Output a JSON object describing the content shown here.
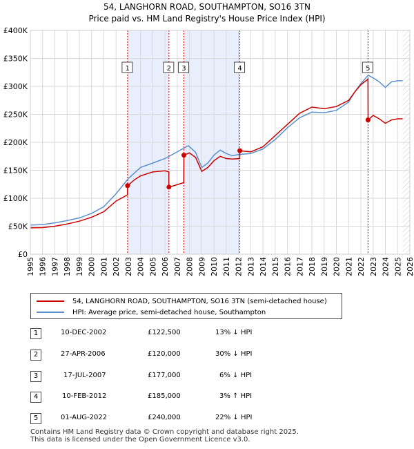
{
  "title_line1": "54, LANGHORN ROAD, SOUTHAMPTON, SO16 3TN",
  "title_line2": "Price paid vs. HM Land Registry's House Price Index (HPI)",
  "colors": {
    "property": "#cc0000",
    "hpi": "#5b8fd0",
    "shade": "#e8eefb",
    "grid": "#d9d9d9"
  },
  "chart_data": {
    "type": "line",
    "title": "54, LANGHORN ROAD, SOUTHAMPTON, SO16 3TN — Price paid vs. HM Land Registry's House Price Index (HPI)",
    "xlabel": "",
    "ylabel": "",
    "xlim": [
      1995,
      2026
    ],
    "ylim": [
      0,
      400000
    ],
    "x_ticks": [
      "1995",
      "1996",
      "1997",
      "1998",
      "1999",
      "2000",
      "2001",
      "2002",
      "2003",
      "2004",
      "2005",
      "2006",
      "2007",
      "2008",
      "2009",
      "2010",
      "2011",
      "2012",
      "2013",
      "2014",
      "2015",
      "2016",
      "2017",
      "2018",
      "2019",
      "2020",
      "2021",
      "2022",
      "2023",
      "2024",
      "2025",
      "2026"
    ],
    "y_ticks": [
      {
        "value": 0,
        "label": "£0"
      },
      {
        "value": 50000,
        "label": "£50K"
      },
      {
        "value": 100000,
        "label": "£100K"
      },
      {
        "value": 150000,
        "label": "£150K"
      },
      {
        "value": 200000,
        "label": "£200K"
      },
      {
        "value": 250000,
        "label": "£250K"
      },
      {
        "value": 300000,
        "label": "£300K"
      },
      {
        "value": 350000,
        "label": "£350K"
      },
      {
        "value": 400000,
        "label": "£400K"
      }
    ],
    "shaded_spans": [
      [
        2002.94,
        2006.32
      ],
      [
        2007.54,
        2012.11
      ]
    ],
    "series": [
      {
        "name": "54, LANGHORN ROAD, SOUTHAMPTON, SO16 3TN (semi-detached house)",
        "color": "#cc0000",
        "points": [
          [
            1995,
            47000
          ],
          [
            1996,
            47500
          ],
          [
            1997,
            50000
          ],
          [
            1998,
            54000
          ],
          [
            1999,
            59000
          ],
          [
            2000,
            66000
          ],
          [
            2001,
            76000
          ],
          [
            2002,
            95000
          ],
          [
            2002.93,
            106000
          ],
          [
            2002.94,
            122500
          ],
          [
            2003.5,
            133000
          ],
          [
            2004,
            140000
          ],
          [
            2005,
            147000
          ],
          [
            2006,
            149000
          ],
          [
            2006.31,
            147000
          ],
          [
            2006.32,
            120000
          ],
          [
            2006.8,
            123000
          ],
          [
            2007.53,
            128000
          ],
          [
            2007.54,
            177000
          ],
          [
            2008,
            181000
          ],
          [
            2008.5,
            173000
          ],
          [
            2009,
            148000
          ],
          [
            2009.5,
            155000
          ],
          [
            2010,
            167000
          ],
          [
            2010.5,
            175000
          ],
          [
            2011,
            171000
          ],
          [
            2011.5,
            170000
          ],
          [
            2012.1,
            171000
          ],
          [
            2012.11,
            185000
          ],
          [
            2013,
            183000
          ],
          [
            2014,
            192000
          ],
          [
            2015,
            212000
          ],
          [
            2016,
            232000
          ],
          [
            2017,
            252000
          ],
          [
            2018,
            263000
          ],
          [
            2019,
            260000
          ],
          [
            2020,
            264000
          ],
          [
            2021,
            275000
          ],
          [
            2021.5,
            290000
          ],
          [
            2022,
            303000
          ],
          [
            2022.58,
            313000
          ],
          [
            2022.59,
            240000
          ],
          [
            2023,
            248000
          ],
          [
            2023.5,
            242000
          ],
          [
            2024,
            234000
          ],
          [
            2024.5,
            240000
          ],
          [
            2025,
            242000
          ],
          [
            2025.4,
            242000
          ]
        ]
      },
      {
        "name": "HPI: Average price, semi-detached house, Southampton",
        "color": "#5b8fd0",
        "points": [
          [
            1995,
            52000
          ],
          [
            1996,
            53000
          ],
          [
            1997,
            56000
          ],
          [
            1998,
            60000
          ],
          [
            1999,
            65000
          ],
          [
            2000,
            73000
          ],
          [
            2001,
            85000
          ],
          [
            2002,
            108000
          ],
          [
            2003,
            135000
          ],
          [
            2004,
            155000
          ],
          [
            2005,
            163000
          ],
          [
            2006,
            171000
          ],
          [
            2007,
            183000
          ],
          [
            2007.9,
            194000
          ],
          [
            2008.5,
            182000
          ],
          [
            2009,
            155000
          ],
          [
            2009.5,
            163000
          ],
          [
            2010,
            177000
          ],
          [
            2010.5,
            186000
          ],
          [
            2011,
            180000
          ],
          [
            2011.5,
            176000
          ],
          [
            2012,
            178000
          ],
          [
            2013,
            180000
          ],
          [
            2014,
            188000
          ],
          [
            2015,
            205000
          ],
          [
            2016,
            226000
          ],
          [
            2017,
            244000
          ],
          [
            2018,
            254000
          ],
          [
            2019,
            253000
          ],
          [
            2020,
            257000
          ],
          [
            2021,
            272000
          ],
          [
            2021.5,
            290000
          ],
          [
            2022,
            305000
          ],
          [
            2022.6,
            320000
          ],
          [
            2023,
            315000
          ],
          [
            2023.5,
            308000
          ],
          [
            2024,
            298000
          ],
          [
            2024.5,
            308000
          ],
          [
            2025,
            310000
          ],
          [
            2025.4,
            310000
          ]
        ]
      }
    ],
    "sales": [
      {
        "label": "1",
        "date": "10-DEC-2002",
        "x": 2002.94,
        "price": 122500,
        "price_label": "£122,500",
        "hpi_diff": "13% ↓ HPI"
      },
      {
        "label": "2",
        "date": "27-APR-2006",
        "x": 2006.32,
        "price": 120000,
        "price_label": "£120,000",
        "hpi_diff": "30% ↓ HPI"
      },
      {
        "label": "3",
        "date": "17-JUL-2007",
        "x": 2007.54,
        "price": 177000,
        "price_label": "£177,000",
        "hpi_diff": "6% ↓ HPI"
      },
      {
        "label": "4",
        "date": "10-FEB-2012",
        "x": 2012.11,
        "price": 185000,
        "price_label": "£185,000",
        "hpi_diff": "3% ↑ HPI"
      },
      {
        "label": "5",
        "date": "01-AUG-2022",
        "x": 2022.58,
        "price": 240000,
        "price_label": "£240,000",
        "hpi_diff": "22% ↓ HPI"
      }
    ],
    "hatched_after": 2025.4,
    "legend_placement": "bottom"
  },
  "legend": {
    "property_label": "54, LANGHORN ROAD, SOUTHAMPTON, SO16 3TN (semi-detached house)",
    "hpi_label": "HPI: Average price, semi-detached house, Southampton"
  },
  "footer_line1": "Contains HM Land Registry data © Crown copyright and database right 2025.",
  "footer_line2": "This data is licensed under the Open Government Licence v3.0."
}
